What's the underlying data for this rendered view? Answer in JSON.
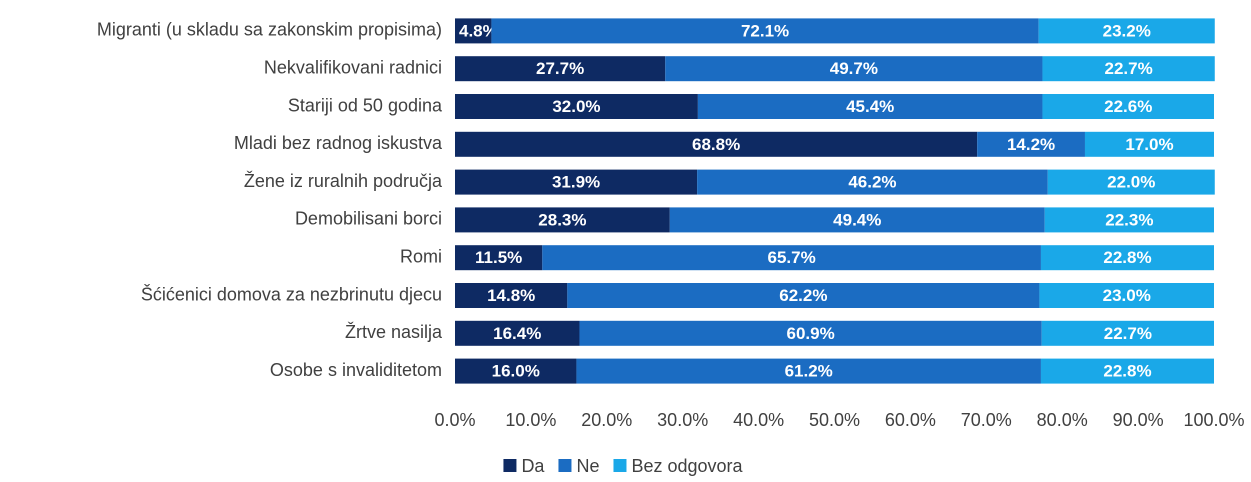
{
  "chart_data": {
    "type": "stacked_bar_horizontal",
    "categories": [
      "Migranti (u skladu sa zakonskim propisima)",
      "Nekvalifikovani radnici",
      "Stariji od 50 godina",
      "Mladi bez radnog iskustva",
      "Žene iz ruralnih područja ",
      "Demobilisani borci",
      "Romi",
      "Šćićenici domova za nezbrinutu djecu",
      "Žrtve nasilja",
      "Osobe s invaliditetom"
    ],
    "series": [
      {
        "name": "Da",
        "color": "#0e2a63",
        "values": [
          4.8,
          27.7,
          32.0,
          68.8,
          31.9,
          28.3,
          11.5,
          14.8,
          16.4,
          16.0
        ],
        "value_labels": [
          "4.8%",
          "27.7%",
          "32.0%",
          "68.8%",
          "31.9%",
          "28.3%",
          "11.5%",
          "14.8%",
          "16.4%",
          "16.0%"
        ]
      },
      {
        "name": "Ne",
        "color": "#1b6cc2",
        "values": [
          72.1,
          49.7,
          45.4,
          14.2,
          46.2,
          49.4,
          65.7,
          62.2,
          60.9,
          61.2
        ],
        "value_labels": [
          "72.1%",
          "49.7%",
          "45.4%",
          "14.2%",
          "46.2%",
          "49.4%",
          "65.7%",
          "62.2%",
          "60.9%",
          "61.2%"
        ]
      },
      {
        "name": "Bez odgovora",
        "color": "#1aa8e8",
        "values": [
          23.2,
          22.7,
          22.6,
          17.0,
          22.0,
          22.3,
          22.8,
          23.0,
          22.7,
          22.8
        ],
        "value_labels": [
          "23.2%",
          "22.7%",
          "22.6%",
          "17.0%",
          "22.0%",
          "22.3%",
          "22.8%",
          "23.0%",
          "22.7%",
          "22.8%"
        ]
      }
    ],
    "xlim": [
      0,
      100
    ],
    "xticks": [
      {
        "value": 0,
        "label": "0.0%"
      },
      {
        "value": 10,
        "label": "10.0%"
      },
      {
        "value": 20,
        "label": "20.0%"
      },
      {
        "value": 30,
        "label": "30.0%"
      },
      {
        "value": 40,
        "label": "40.0%"
      },
      {
        "value": 50,
        "label": "50.0%"
      },
      {
        "value": 60,
        "label": "60.0%"
      },
      {
        "value": 70,
        "label": "70.0%"
      },
      {
        "value": 80,
        "label": "80.0%"
      },
      {
        "value": 90,
        "label": "90.0%"
      },
      {
        "value": 100,
        "label": "100.0%"
      }
    ],
    "grid": false,
    "legend": "bottom"
  }
}
